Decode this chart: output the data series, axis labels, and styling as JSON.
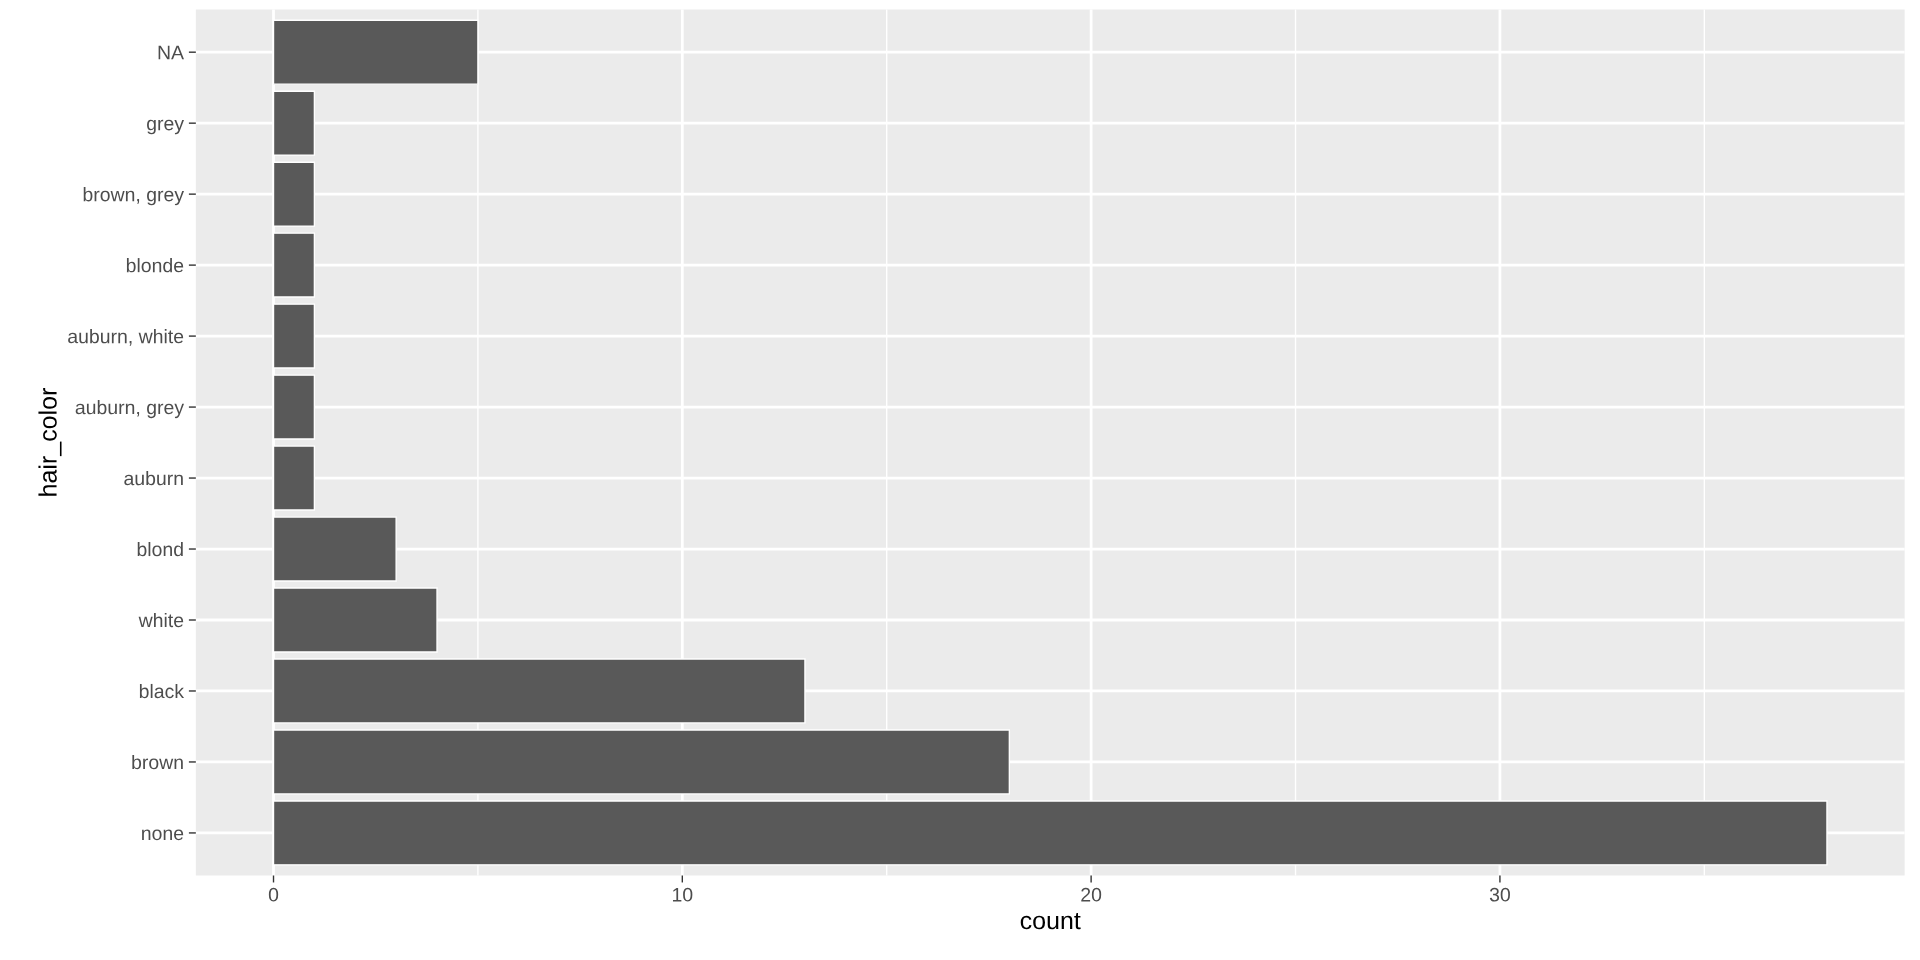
{
  "chart_data": {
    "type": "bar",
    "orientation": "horizontal",
    "xlabel": "count",
    "ylabel": "hair_color",
    "categories": [
      "NA",
      "grey",
      "brown, grey",
      "blonde",
      "auburn, white",
      "auburn, grey",
      "auburn",
      "blond",
      "white",
      "black",
      "brown",
      "none"
    ],
    "values": [
      5,
      1,
      1,
      1,
      1,
      1,
      1,
      3,
      4,
      13,
      18,
      38
    ],
    "color": "#595959",
    "xlim": [
      -1.9,
      39.9
    ],
    "xticks": [
      0,
      10,
      20,
      30
    ],
    "grid": true
  }
}
